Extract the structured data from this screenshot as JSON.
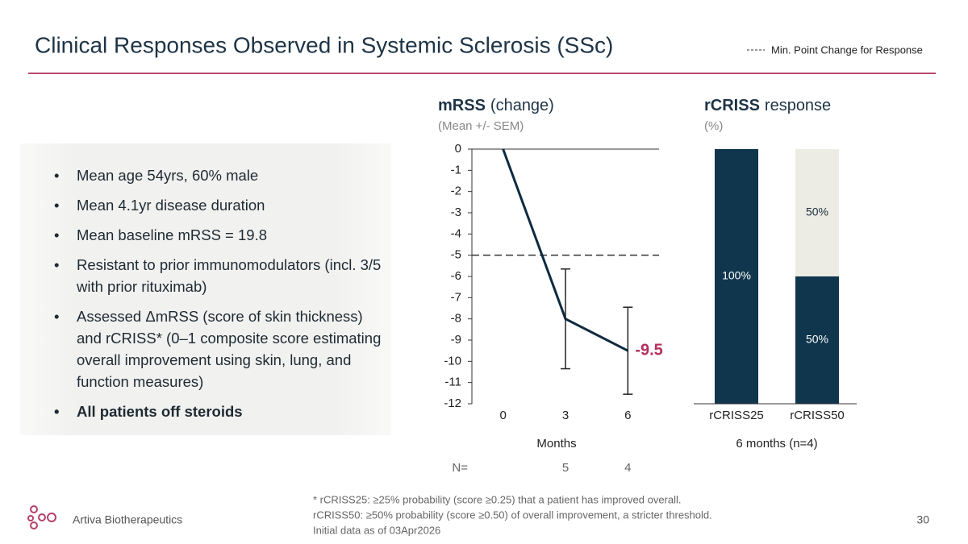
{
  "title": "Clinical Responses Observed in Systemic Sclerosis (SSc)",
  "bullets": [
    "Mean age 54yrs, 60% male",
    "Mean 4.1yr disease duration",
    "Mean baseline mRSS = 19.8",
    "Resistant to prior immunomodulators (incl. 3/5 with prior rituximab)",
    "Assessed ΔmRSS (score of skin thickness) and rCRISS* (0–1 composite score estimating overall improvement using skin, lung, and function measures)",
    "All patients off steroids"
  ],
  "footnotes": [
    "* rCRISS25: ≥25% probability (score ≥0.25) that a patient has improved overall.",
    "rCRISS50: ≥50% probability (score ≥0.50) of overall improvement, a stricter threshold.",
    "Initial data as of 03Apr2026"
  ],
  "company": "Artiva Biotherapeutics",
  "page_number": "30",
  "chart_data": [
    {
      "type": "line",
      "title": "mRSS",
      "title_suffix": "(change)",
      "subtitle": "(Mean +/- SEM)",
      "x": [
        0,
        3,
        6
      ],
      "values": [
        0,
        -8,
        -9.5
      ],
      "errors": [
        null,
        2.35,
        2.05
      ],
      "value_labels": [
        null,
        null,
        "-9.5"
      ],
      "color": "#0d2b40",
      "label_color": "#b5305c",
      "xlim": [
        -1.5,
        7.5
      ],
      "xticks": [
        0,
        3,
        6
      ],
      "xlabel": "Months",
      "ylim": [
        -12,
        0
      ],
      "yticks": [
        0,
        -1,
        -2,
        -3,
        -4,
        -5,
        -6,
        -7,
        -8,
        -9,
        -10,
        -11,
        -12
      ],
      "threshold": {
        "value": -5,
        "label": "Min. Point Change for Response"
      },
      "n_label": "N=",
      "n": [
        null,
        5,
        4
      ],
      "grid": false
    },
    {
      "type": "stacked-bar",
      "title": "rCRISS",
      "title_suffix": "response",
      "subtitle": "(%)",
      "categories": [
        "rCRISS25",
        "rCRISS50"
      ],
      "xlabel": "6 months (n=4)",
      "series": [
        {
          "color": "#0f364d",
          "label_color": "#ffffff",
          "values": [
            100,
            50
          ],
          "value_labels": [
            "100%",
            "50%"
          ]
        },
        {
          "color": "#ecebe4",
          "label_color": "#1e2f3c",
          "values": [
            0,
            50
          ],
          "value_labels": [
            null,
            "50%"
          ]
        }
      ],
      "ylim": [
        0,
        100
      ]
    }
  ]
}
